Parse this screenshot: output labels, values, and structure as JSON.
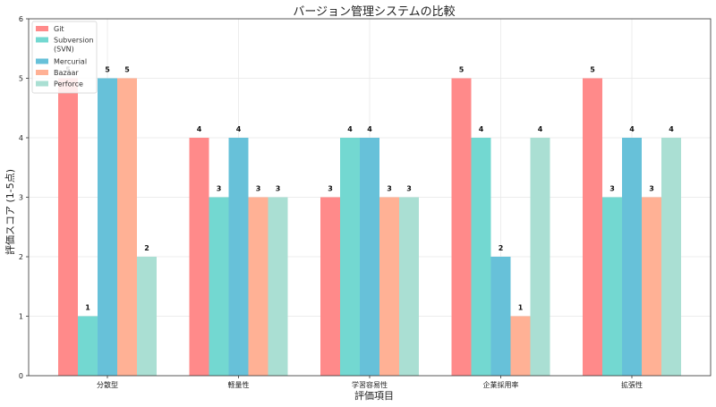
{
  "chart_data": {
    "type": "bar",
    "title": "バージョン管理システムの比較",
    "xlabel": "評価項目",
    "ylabel": "評価スコア (1-5点)",
    "categories": [
      "分散型",
      "軽量性",
      "学習容易性",
      "企業採用率",
      "拡張性"
    ],
    "ylim": [
      0,
      6
    ],
    "yticks": [
      0,
      1,
      2,
      3,
      4,
      5,
      6
    ],
    "grid": true,
    "legend_position": "top-left",
    "series": [
      {
        "name": "Git",
        "color": "#ff8a8a",
        "values": [
          5,
          4,
          3,
          5,
          5
        ]
      },
      {
        "name": "Subversion\n(SVN)",
        "color": "#73d8d1",
        "values": [
          1,
          3,
          4,
          4,
          3
        ]
      },
      {
        "name": "Mercurial",
        "color": "#67c1d9",
        "values": [
          5,
          4,
          4,
          2,
          4
        ]
      },
      {
        "name": "Bazaar",
        "color": "#ffb195",
        "values": [
          5,
          3,
          3,
          1,
          3
        ]
      },
      {
        "name": "Perforce",
        "color": "#aadfd3",
        "values": [
          2,
          3,
          3,
          4,
          4
        ]
      }
    ]
  }
}
